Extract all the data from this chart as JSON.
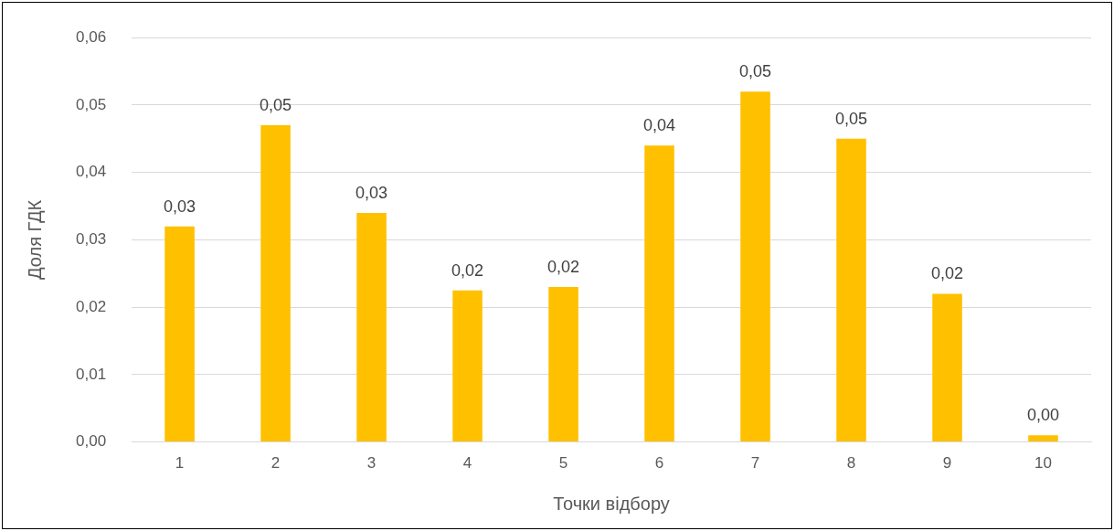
{
  "chart_data": {
    "type": "bar",
    "xlabel": "Точки відбору",
    "ylabel": "Доля ГДК",
    "categories": [
      "1",
      "2",
      "3",
      "4",
      "5",
      "6",
      "7",
      "8",
      "9",
      "10"
    ],
    "values": [
      0.032,
      0.047,
      0.034,
      0.0225,
      0.023,
      0.044,
      0.052,
      0.045,
      0.022,
      0.001
    ],
    "value_labels": [
      "0,03",
      "0,05",
      "0,03",
      "0,02",
      "0,02",
      "0,04",
      "0,05",
      "0,05",
      "0,02",
      "0,00"
    ],
    "color": "#ffc000",
    "ylim": [
      0,
      0.06
    ],
    "yticks": [
      {
        "value": 0,
        "label": "0,00"
      },
      {
        "value": 0.01,
        "label": "0,01"
      },
      {
        "value": 0.02,
        "label": "0,02"
      },
      {
        "value": 0.03,
        "label": "0,03"
      },
      {
        "value": 0.04,
        "label": "0,04"
      },
      {
        "value": 0.05,
        "label": "0,05"
      },
      {
        "value": 0.06,
        "label": "0,06"
      }
    ],
    "grid": "y",
    "legend": false
  }
}
